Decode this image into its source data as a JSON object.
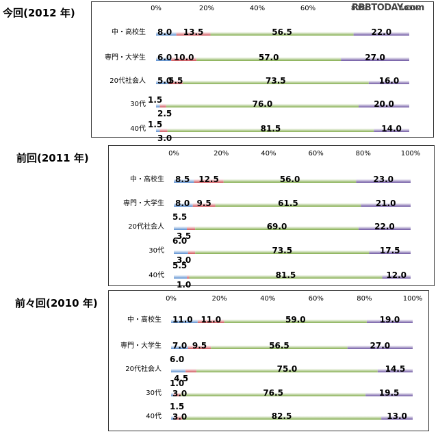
{
  "watermark": "RBBTODAY.com",
  "colors": {
    "s1": "#5b8fd0",
    "s2": "#d0545a",
    "s3": "#84ad4f",
    "s4": "#6e56a2"
  },
  "chart_data": [
    {
      "type": "bar",
      "orientation": "horizontal",
      "stacked": "percent",
      "title": "今回(2012 年)",
      "xlim": [
        0,
        100
      ],
      "ticks": [
        "0%",
        "20%",
        "40%",
        "60%",
        "80%",
        "100%"
      ],
      "categories": [
        "中・高校生",
        "専門・大学生",
        "20代社会人",
        "30代",
        "40代"
      ],
      "series": [
        {
          "values": [
            8.0,
            6.0,
            5.0,
            1.5,
            1.5
          ]
        },
        {
          "values": [
            13.5,
            10.0,
            5.5,
            2.5,
            3.0
          ]
        },
        {
          "values": [
            56.5,
            57.0,
            73.5,
            76.0,
            81.5
          ]
        },
        {
          "values": [
            22.0,
            27.0,
            16.0,
            20.0,
            14.0
          ]
        }
      ],
      "labels": [
        [
          "8.0",
          "13.5",
          "56.5",
          "22.0"
        ],
        [
          "6.0",
          "10.0",
          "57.0",
          "27.0"
        ],
        [
          "5.0",
          "5.5",
          "73.5",
          "16.0"
        ],
        [
          "1.5",
          "2.5",
          "76.0",
          "20.0"
        ],
        [
          "1.5",
          "3.0",
          "81.5",
          "14.0"
        ]
      ]
    },
    {
      "type": "bar",
      "orientation": "horizontal",
      "stacked": "percent",
      "title": "前回(2011 年)",
      "xlim": [
        0,
        100
      ],
      "ticks": [
        "0%",
        "20%",
        "40%",
        "60%",
        "80%",
        "100%"
      ],
      "categories": [
        "中・高校生",
        "専門・大学生",
        "20代社会人",
        "30代",
        "40代"
      ],
      "series": [
        {
          "values": [
            8.5,
            8.0,
            5.5,
            6.0,
            5.5
          ]
        },
        {
          "values": [
            12.5,
            9.5,
            3.5,
            3.0,
            1.0
          ]
        },
        {
          "values": [
            56.0,
            61.5,
            69.0,
            73.5,
            81.5
          ]
        },
        {
          "values": [
            23.0,
            21.0,
            22.0,
            17.5,
            12.0
          ]
        }
      ],
      "labels": [
        [
          "8.5",
          "12.5",
          "56.0",
          "23.0"
        ],
        [
          "8.0",
          "9.5",
          "61.5",
          "21.0"
        ],
        [
          "5.5",
          "3.5",
          "69.0",
          "22.0"
        ],
        [
          "6.0",
          "3.0",
          "73.5",
          "17.5"
        ],
        [
          "5.5",
          "1.0",
          "81.5",
          "12.0"
        ]
      ]
    },
    {
      "type": "bar",
      "orientation": "horizontal",
      "stacked": "percent",
      "title": "前々回(2010 年)",
      "xlim": [
        0,
        100
      ],
      "ticks": [
        "0%",
        "20%",
        "40%",
        "60%",
        "80%",
        "100%"
      ],
      "categories": [
        "中・高校生",
        "専門・大学生",
        "20代社会人",
        "30代",
        "40代"
      ],
      "series": [
        {
          "values": [
            11.0,
            7.0,
            6.0,
            1.0,
            1.5
          ]
        },
        {
          "values": [
            11.0,
            9.5,
            4.5,
            3.0,
            3.0
          ]
        },
        {
          "values": [
            59.0,
            56.5,
            75.0,
            76.5,
            82.5
          ]
        },
        {
          "values": [
            19.0,
            27.0,
            14.5,
            19.5,
            13.0
          ]
        }
      ],
      "labels": [
        [
          "11.0",
          "11.0",
          "59.0",
          "19.0"
        ],
        [
          "7.0",
          "9.5",
          "56.5",
          "27.0"
        ],
        [
          "6.0",
          "4.5",
          "75.0",
          "14.5"
        ],
        [
          "1.0",
          "3.0",
          "76.5",
          "19.5"
        ],
        [
          "1.5",
          "3.0",
          "82.5",
          "13.0"
        ]
      ]
    }
  ]
}
